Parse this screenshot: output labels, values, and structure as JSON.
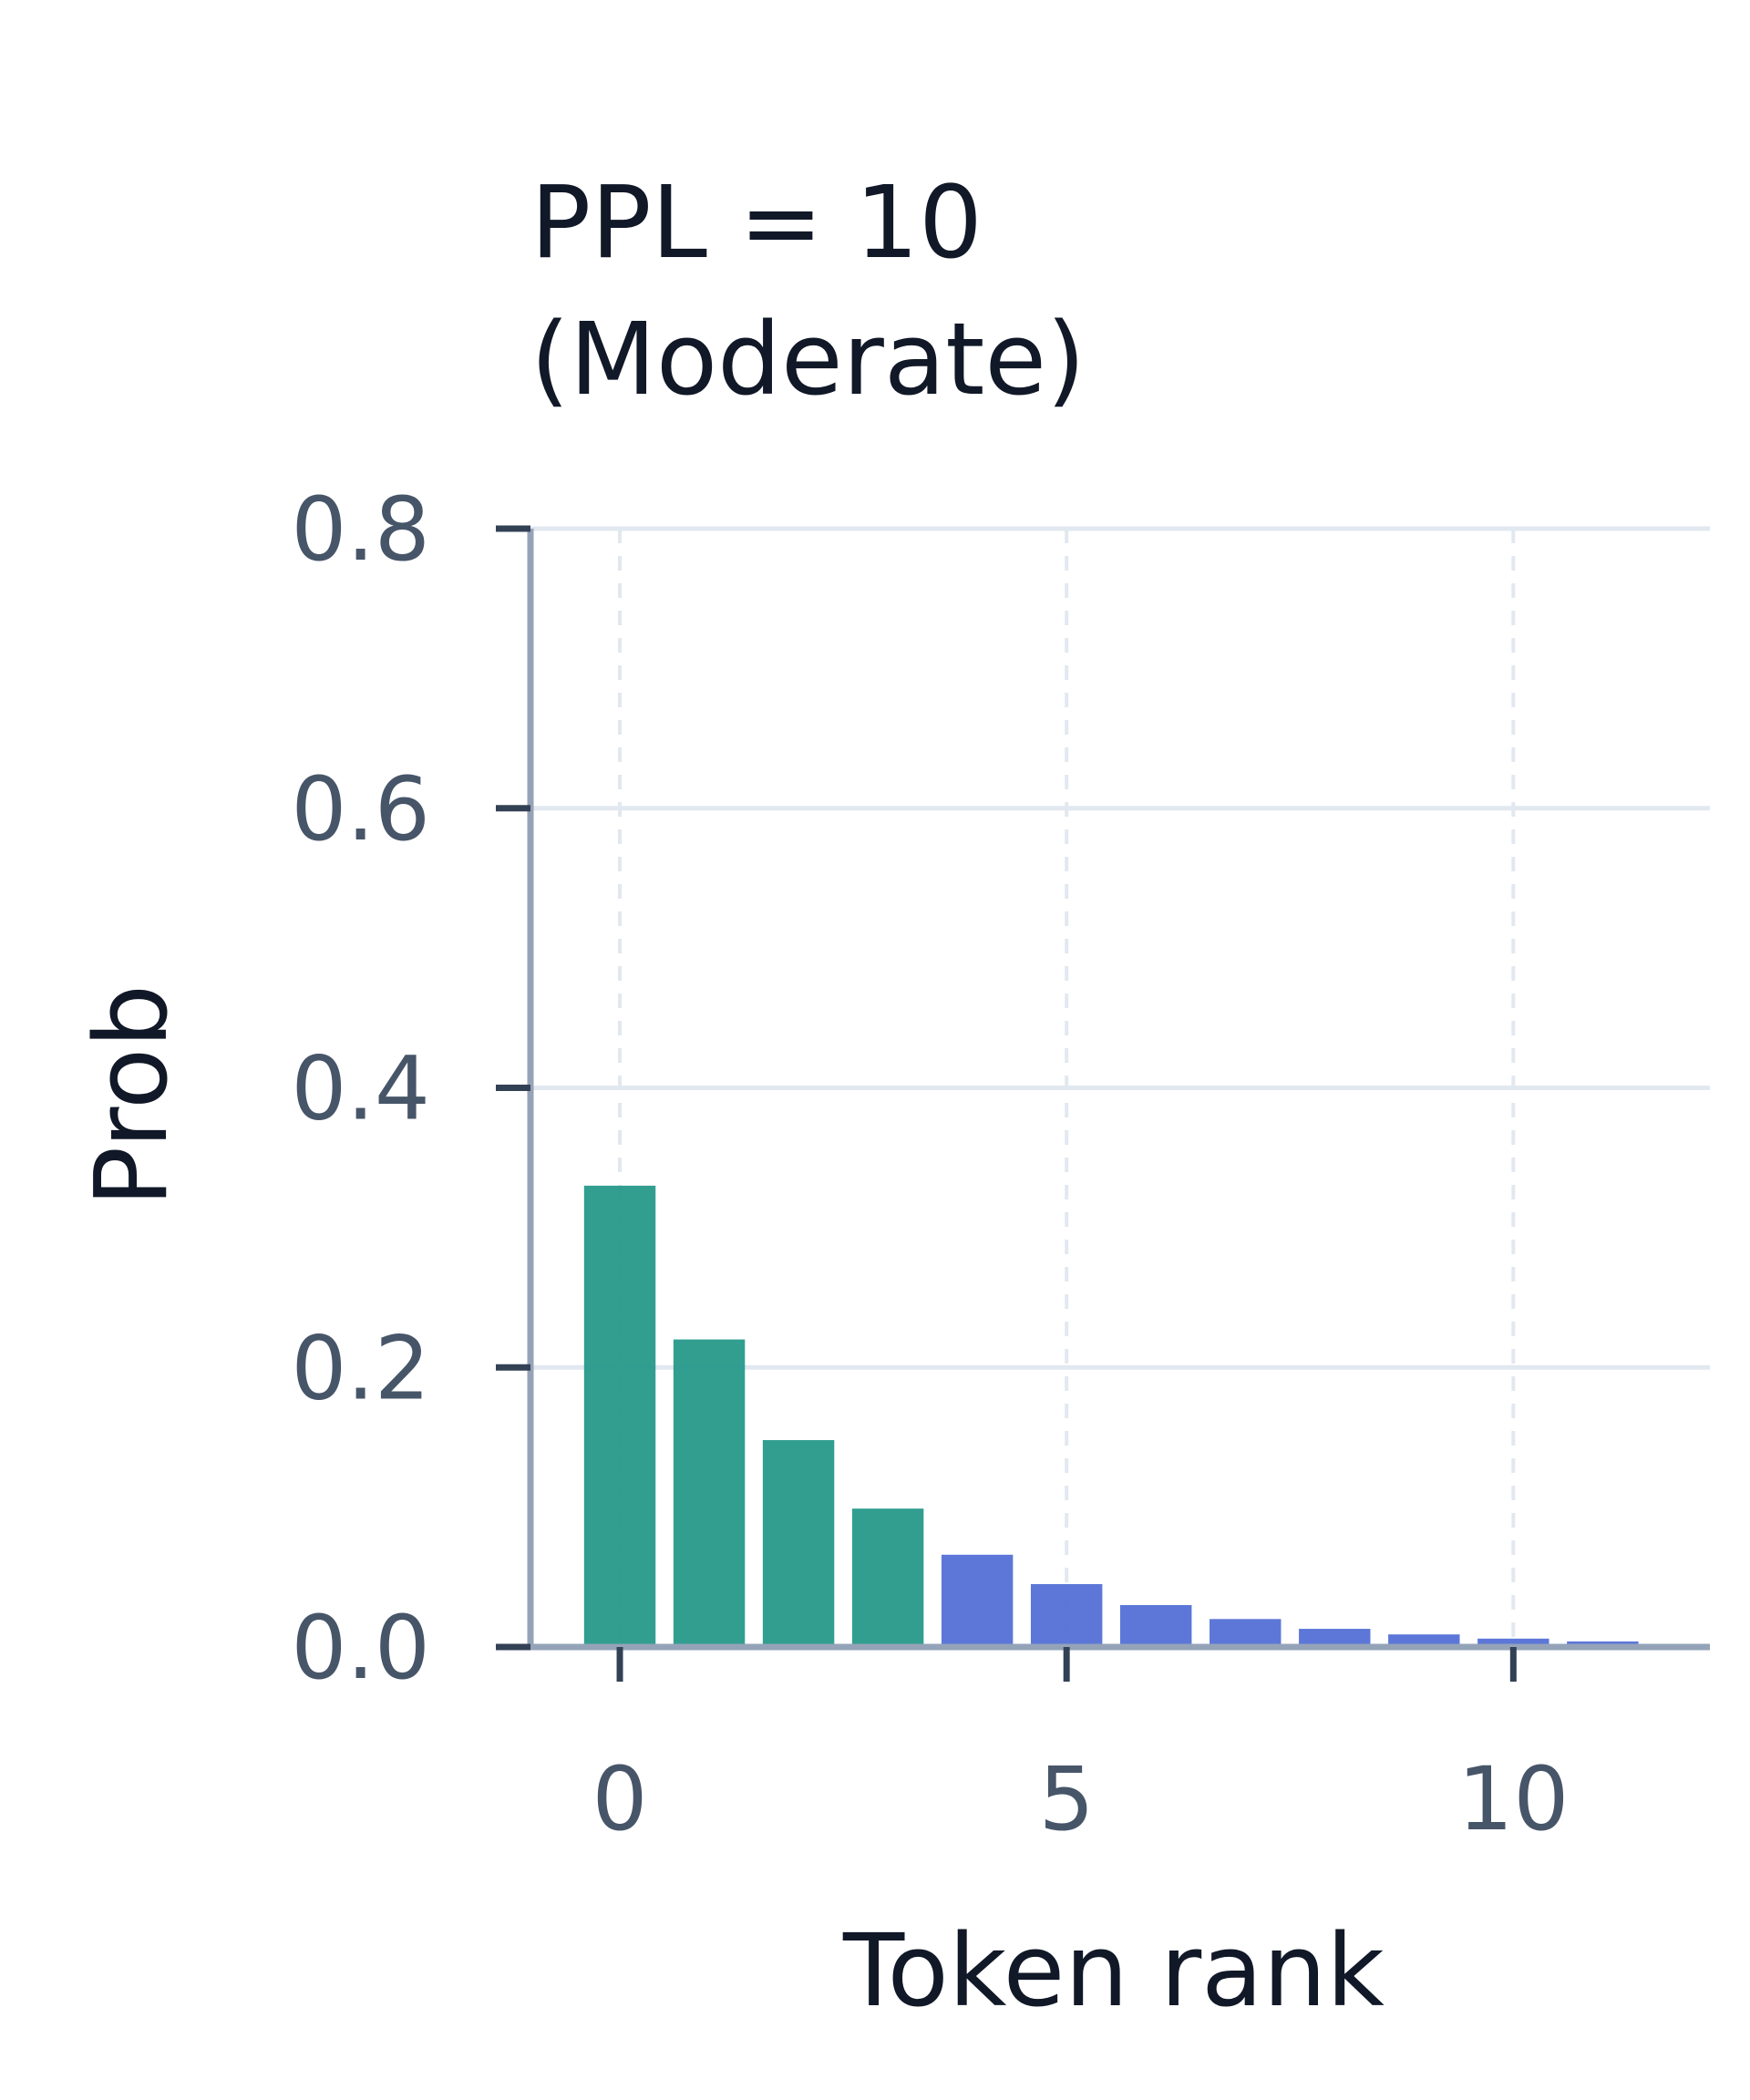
{
  "colors": {
    "top_tokens": "#26998a",
    "tail_tokens": "#5470d6",
    "grid": "#e2e8f0",
    "axis": "#94a3b8",
    "tick_text": "#475569",
    "title_text": "#111827"
  },
  "chart_data": {
    "type": "bar",
    "title_lines": [
      "PPL = 10",
      "(Moderate)"
    ],
    "xlabel": "Token rank",
    "ylabel": "Prob",
    "x": [
      0,
      1,
      2,
      3,
      4,
      5,
      6,
      7,
      8,
      9,
      10,
      11
    ],
    "values": [
      0.33,
      0.22,
      0.148,
      0.099,
      0.066,
      0.045,
      0.03,
      0.02,
      0.013,
      0.009,
      0.006,
      0.004
    ],
    "bar_color_groups": [
      "top",
      "top",
      "top",
      "top",
      "tail",
      "tail",
      "tail",
      "tail",
      "tail",
      "tail",
      "tail",
      "tail"
    ],
    "xlim": [
      -1,
      12.2
    ],
    "ylim": [
      0,
      0.8
    ],
    "xticks": [
      0,
      5,
      10
    ],
    "xtick_labels": [
      "0",
      "5",
      "10"
    ],
    "yticks": [
      0,
      0.2,
      0.4,
      0.6,
      0.8
    ],
    "ytick_labels": [
      "0.0",
      "0.2",
      "0.4",
      "0.6",
      "0.8"
    ],
    "grid": true,
    "legend": "none"
  }
}
